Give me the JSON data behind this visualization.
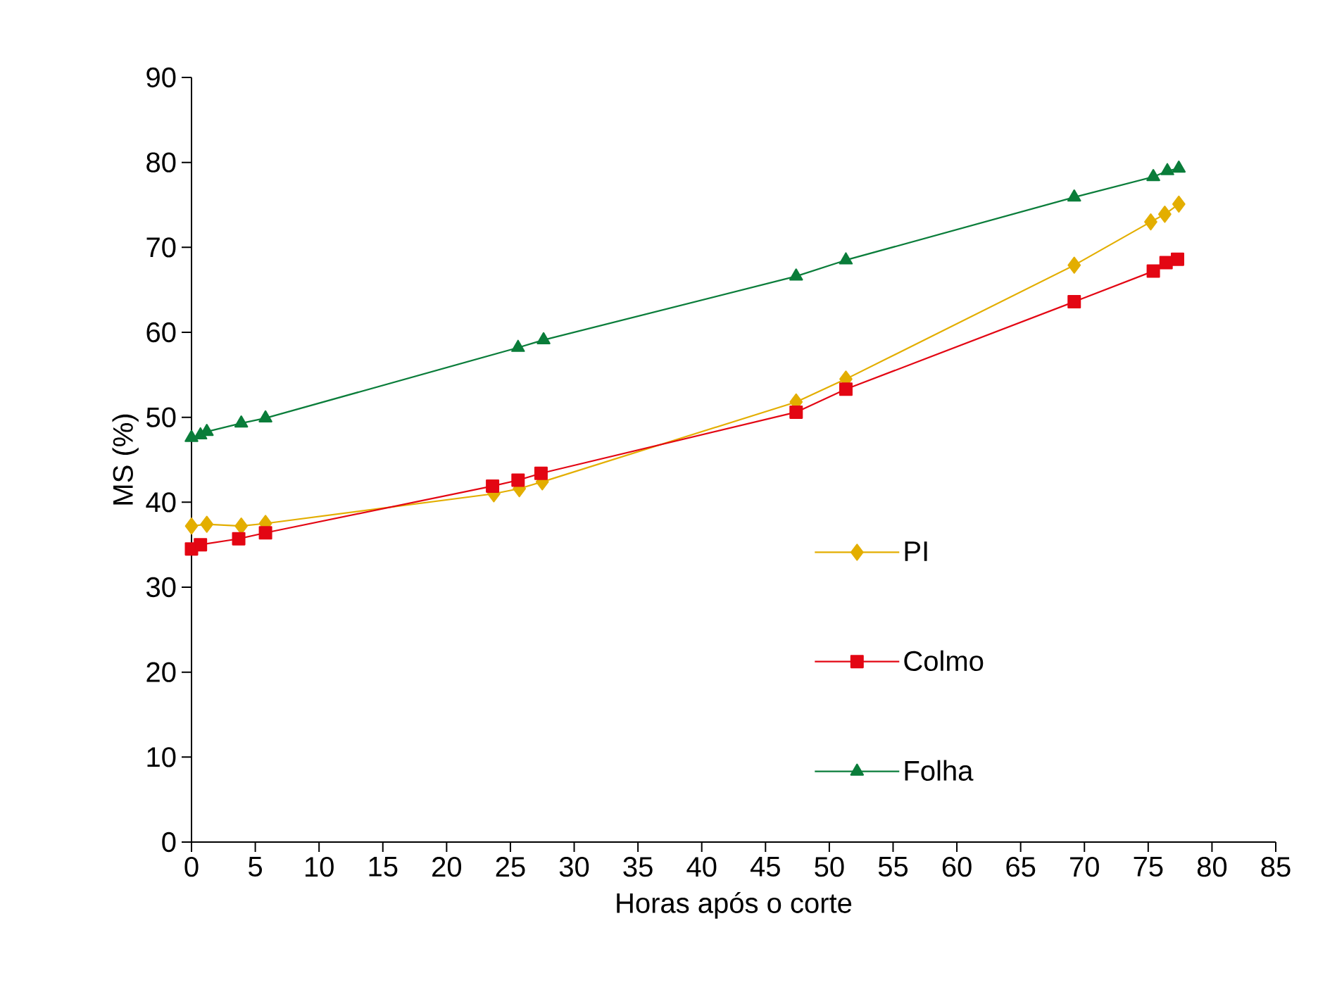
{
  "chart_data": {
    "type": "line",
    "xlabel": "Horas após o corte",
    "ylabel": "MS (%)",
    "xlim": [
      0,
      85
    ],
    "xticks": [
      0,
      5,
      10,
      15,
      20,
      25,
      30,
      35,
      40,
      45,
      50,
      55,
      60,
      65,
      70,
      75,
      80,
      85
    ],
    "ylim": [
      0,
      90
    ],
    "yticks": [
      0,
      10,
      20,
      30,
      40,
      50,
      60,
      70,
      80,
      90
    ],
    "grid": false,
    "legend": "right",
    "line_style": "solid",
    "series": [
      {
        "name": "PI",
        "color": "#e3ae00",
        "marker": "diamond",
        "x": [
          0,
          1.2,
          3.9,
          5.8,
          23.7,
          25.7,
          27.5,
          47.4,
          51.3,
          69.2,
          75.2,
          76.3,
          77.4
        ],
        "values": [
          37.2,
          37.4,
          37.2,
          37.5,
          41.0,
          41.6,
          42.4,
          51.8,
          54.5,
          67.9,
          73.0,
          73.9,
          75.1
        ]
      },
      {
        "name": "Colmo",
        "color": "#e30613",
        "marker": "square",
        "x": [
          0,
          0.7,
          3.7,
          5.8,
          23.6,
          25.6,
          27.4,
          47.4,
          51.3,
          69.2,
          75.4,
          76.4,
          77.3
        ],
        "values": [
          34.5,
          35.0,
          35.7,
          36.4,
          41.9,
          42.6,
          43.4,
          50.6,
          53.3,
          63.6,
          67.2,
          68.2,
          68.6
        ]
      },
      {
        "name": "Folha",
        "color": "#0a7d3a",
        "marker": "triangle",
        "x": [
          0,
          0.7,
          1.2,
          3.9,
          5.8,
          25.6,
          27.6,
          47.4,
          51.3,
          69.2,
          75.4,
          76.5,
          77.4
        ],
        "values": [
          47.6,
          47.9,
          48.3,
          49.3,
          49.9,
          58.2,
          59.1,
          66.6,
          68.5,
          75.9,
          78.3,
          79.0,
          79.3
        ]
      }
    ]
  }
}
